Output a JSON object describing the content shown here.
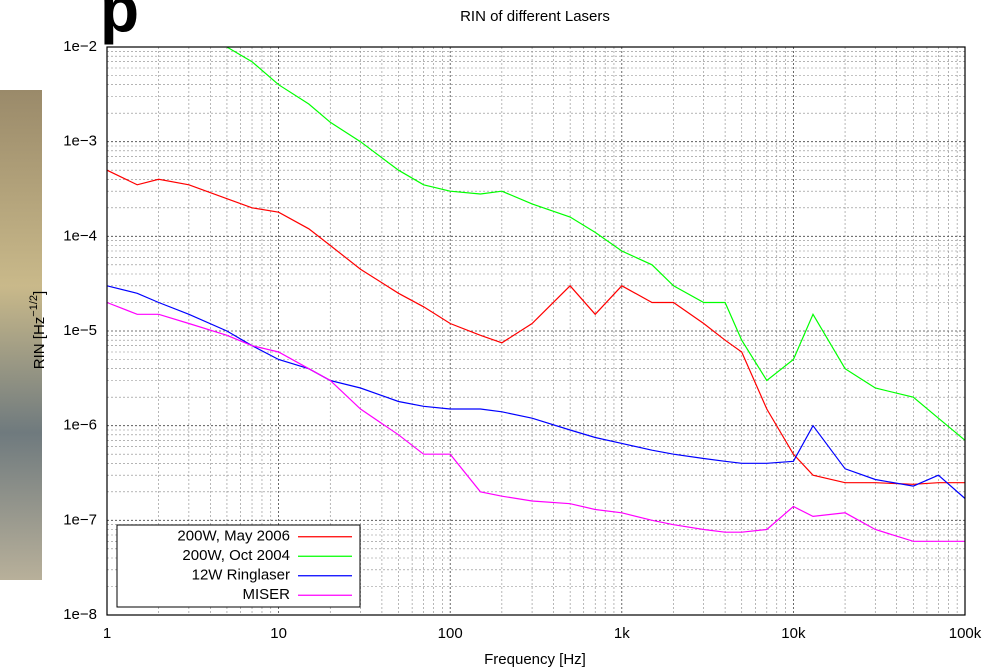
{
  "slide_title_fragment": "p",
  "chart_data": {
    "type": "line",
    "title": "RIN of different Lasers",
    "xlabel": "Frequency [Hz]",
    "ylabel_parts": [
      "RIN [Hz",
      "−1/2",
      "]"
    ],
    "xscale": "log",
    "yscale": "log",
    "grid": true,
    "minor_grid": true,
    "legend": "lower left",
    "xlim": [
      1,
      100000
    ],
    "ylim": [
      1e-08,
      0.01
    ],
    "xticks": [
      1,
      10,
      100,
      {
        "value": 1000,
        "label": "1k"
      },
      {
        "value": 10000,
        "label": "10k"
      },
      {
        "value": 100000,
        "label": "100k"
      }
    ],
    "yticks": [
      {
        "value": 1e-08,
        "label": "1e−8"
      },
      {
        "value": 1e-07,
        "label": "1e−7"
      },
      {
        "value": 1e-06,
        "label": "1e−6"
      },
      {
        "value": 1e-05,
        "label": "1e−5"
      },
      {
        "value": 0.0001,
        "label": "1e−4"
      },
      {
        "value": 0.001,
        "label": "1e−3"
      },
      {
        "value": 0.01,
        "label": "1e−2"
      }
    ],
    "x": [
      1,
      1.5,
      2,
      3,
      5,
      7,
      10,
      15,
      20,
      30,
      50,
      70,
      100,
      150,
      200,
      300,
      500,
      700,
      1000,
      1500,
      2000,
      3000,
      4000,
      5000,
      7000,
      10000,
      13000,
      20000,
      30000,
      50000,
      70000,
      100000
    ],
    "series": [
      {
        "name": "200W, May 2006",
        "color": "#ff0000",
        "values": [
          0.0005,
          0.00035,
          0.0004,
          0.00035,
          0.00025,
          0.0002,
          0.00018,
          0.00012,
          8e-05,
          4.5e-05,
          2.5e-05,
          1.8e-05,
          1.2e-05,
          9e-06,
          7.5e-06,
          1.2e-05,
          3e-05,
          1.5e-05,
          3e-05,
          2e-05,
          2e-05,
          1.2e-05,
          8e-06,
          6e-06,
          1.5e-06,
          5e-07,
          3e-07,
          2.5e-07,
          2.5e-07,
          2.4e-07,
          2.5e-07,
          2.5e-07
        ]
      },
      {
        "name": "200W, Oct 2004",
        "color": "#00ff00",
        "values": [
          null,
          null,
          null,
          null,
          0.01,
          0.007,
          0.004,
          0.0025,
          0.0016,
          0.001,
          0.0005,
          0.00035,
          0.0003,
          0.00028,
          0.0003,
          0.00022,
          0.00016,
          0.00011,
          7e-05,
          5e-05,
          3e-05,
          2e-05,
          2e-05,
          8e-06,
          3e-06,
          5e-06,
          1.5e-05,
          4e-06,
          2.5e-06,
          2e-06,
          1.2e-06,
          7e-07
        ]
      },
      {
        "name": "12W Ringlaser",
        "color": "#0000ff",
        "values": [
          3e-05,
          2.5e-05,
          2e-05,
          1.5e-05,
          1e-05,
          7e-06,
          5e-06,
          4e-06,
          3e-06,
          2.5e-06,
          1.8e-06,
          1.6e-06,
          1.5e-06,
          1.5e-06,
          1.4e-06,
          1.2e-06,
          9e-07,
          7.5e-07,
          6.5e-07,
          5.5e-07,
          5e-07,
          4.5e-07,
          4.2e-07,
          4e-07,
          4e-07,
          4.2e-07,
          1e-06,
          3.5e-07,
          2.7e-07,
          2.3e-07,
          3e-07,
          1.7e-07
        ]
      },
      {
        "name": "MISER",
        "color": "#ff00ff",
        "values": [
          2e-05,
          1.5e-05,
          1.5e-05,
          1.2e-05,
          9e-06,
          7e-06,
          6e-06,
          4e-06,
          3e-06,
          1.5e-06,
          8e-07,
          5e-07,
          5e-07,
          2e-07,
          1.8e-07,
          1.6e-07,
          1.5e-07,
          1.3e-07,
          1.2e-07,
          1e-07,
          9e-08,
          8e-08,
          7.5e-08,
          7.5e-08,
          8e-08,
          1.4e-07,
          1.1e-07,
          1.2e-07,
          8e-08,
          6e-08,
          6e-08,
          6e-08
        ]
      }
    ]
  }
}
